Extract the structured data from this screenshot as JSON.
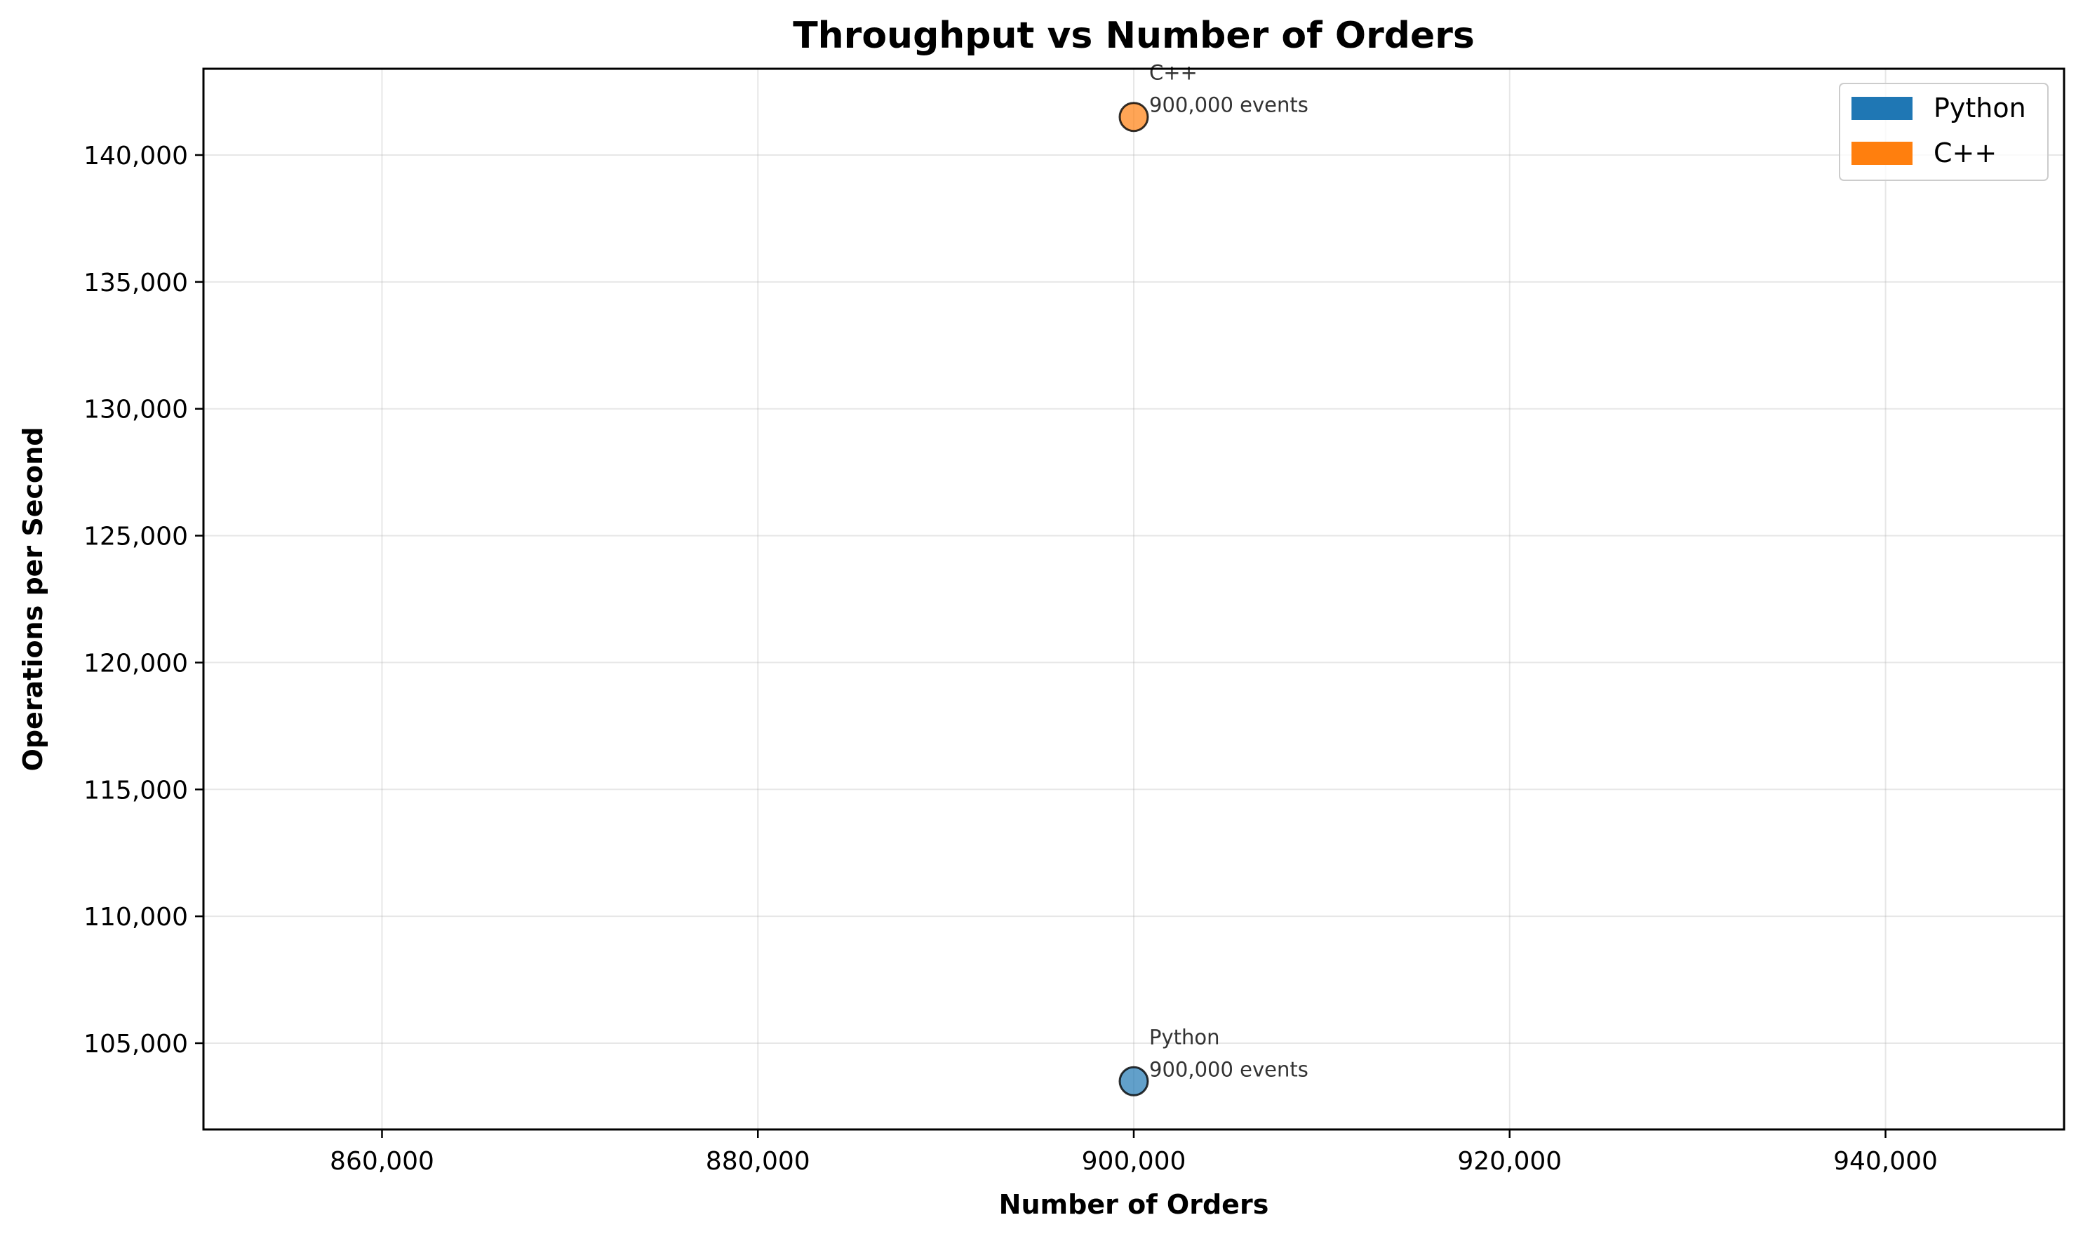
{
  "chart_data": {
    "type": "scatter",
    "title": "Throughput vs Number of Orders",
    "xlabel": "Number of Orders",
    "ylabel": "Operations per Second",
    "xlim": [
      850500,
      949500
    ],
    "ylim": [
      101600,
      143400
    ],
    "xticks": [
      860000,
      880000,
      900000,
      920000,
      940000
    ],
    "xtick_labels": [
      "860,000",
      "880,000",
      "900,000",
      "920,000",
      "940,000"
    ],
    "yticks": [
      105000,
      110000,
      115000,
      120000,
      125000,
      130000,
      135000,
      140000
    ],
    "ytick_labels": [
      "105,000",
      "110,000",
      "115,000",
      "120,000",
      "125,000",
      "130,000",
      "135,000",
      "140,000"
    ],
    "grid": true,
    "legend_position": "top-right",
    "series": [
      {
        "name": "Python",
        "color": "#1f77b4",
        "points": [
          {
            "x": 900000,
            "y": 103500,
            "annotation": [
              "Python",
              "900,000 events"
            ]
          }
        ]
      },
      {
        "name": "C++",
        "color": "#ff7f0e",
        "points": [
          {
            "x": 900000,
            "y": 141500,
            "annotation": [
              "C++",
              "900,000 events"
            ]
          }
        ]
      }
    ]
  }
}
